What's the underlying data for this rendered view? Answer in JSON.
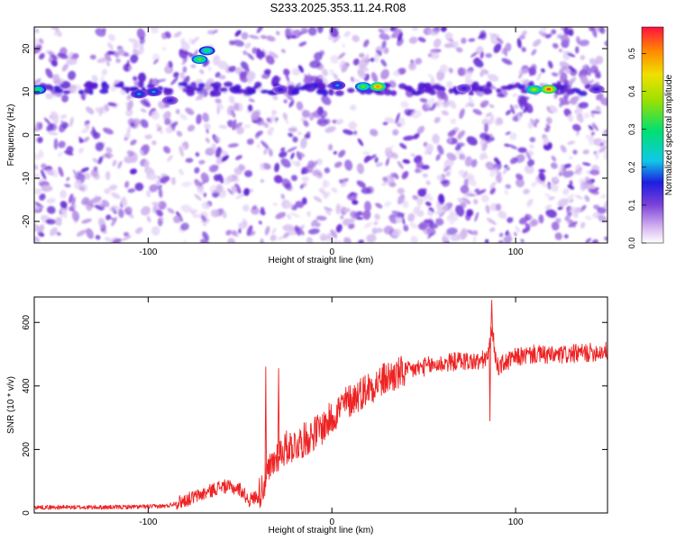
{
  "title": "S233.2025.353.11.24.R08",
  "chart_data": [
    {
      "type": "heatmap",
      "xlabel": "Height of straight line (km)",
      "ylabel": "Frequency (Hz)",
      "xlim": [
        -162,
        150
      ],
      "ylim": [
        -25,
        25
      ],
      "xticks": [
        -100,
        0,
        100
      ],
      "yticks": [
        -20,
        -10,
        0,
        10,
        20
      ],
      "colorbar": {
        "label": "Normalized spectral amplitude",
        "range": [
          0,
          0.57
        ],
        "ticks": [
          0.0,
          0.1,
          0.2,
          0.3,
          0.4,
          0.5
        ]
      },
      "features": [
        {
          "x": -160,
          "y": 10.5,
          "value": 0.3
        },
        {
          "x": -105,
          "y": 9.5,
          "value": 0.2
        },
        {
          "x": -97,
          "y": 10,
          "value": 0.2
        },
        {
          "x": -88,
          "y": 8,
          "value": 0.15
        },
        {
          "x": -72,
          "y": 17.5,
          "value": 0.35
        },
        {
          "x": -68,
          "y": 19.5,
          "value": 0.3
        },
        {
          "x": -28,
          "y": 10.5,
          "value": 0.15
        },
        {
          "x": 3,
          "y": 11.5,
          "value": 0.2
        },
        {
          "x": 17,
          "y": 11.2,
          "value": 0.35
        },
        {
          "x": 25,
          "y": 11.2,
          "value": 0.5
        },
        {
          "x": 72,
          "y": 10.8,
          "value": 0.15
        },
        {
          "x": 110,
          "y": 10.5,
          "value": 0.4
        },
        {
          "x": 118,
          "y": 10.6,
          "value": 0.55
        },
        {
          "x": 144,
          "y": 10.6,
          "value": 0.15
        }
      ]
    },
    {
      "type": "line",
      "xlabel": "Height of straight line (km)",
      "ylabel": "SNR (10 * v/v)",
      "xlim": [
        -162,
        150
      ],
      "ylim": [
        0,
        680
      ],
      "xticks": [
        -100,
        0,
        100
      ],
      "yticks": [
        0,
        200,
        400,
        600
      ],
      "series": [
        {
          "color": "#ee2222",
          "x": [
            -162,
            -140,
            -120,
            -100,
            -90,
            -80,
            -70,
            -60,
            -50,
            -45,
            -40,
            -35,
            -30,
            -25,
            -20,
            -15,
            -10,
            -5,
            0,
            5,
            10,
            15,
            20,
            30,
            40,
            50,
            60,
            70,
            80,
            85,
            87,
            90,
            100,
            110,
            120,
            130,
            140,
            150
          ],
          "y": [
            18,
            18,
            18,
            20,
            22,
            40,
            60,
            85,
            75,
            40,
            55,
            120,
            180,
            205,
            215,
            230,
            250,
            270,
            300,
            335,
            355,
            375,
            395,
            425,
            445,
            460,
            470,
            480,
            475,
            490,
            580,
            460,
            490,
            500,
            495,
            500,
            505,
            510
          ]
        }
      ],
      "annotations": [
        {
          "x": -36,
          "y": 460
        },
        {
          "x": -29,
          "y": 455
        },
        {
          "x": 87,
          "y": 670
        },
        {
          "x": 86,
          "y": 290
        }
      ]
    }
  ]
}
